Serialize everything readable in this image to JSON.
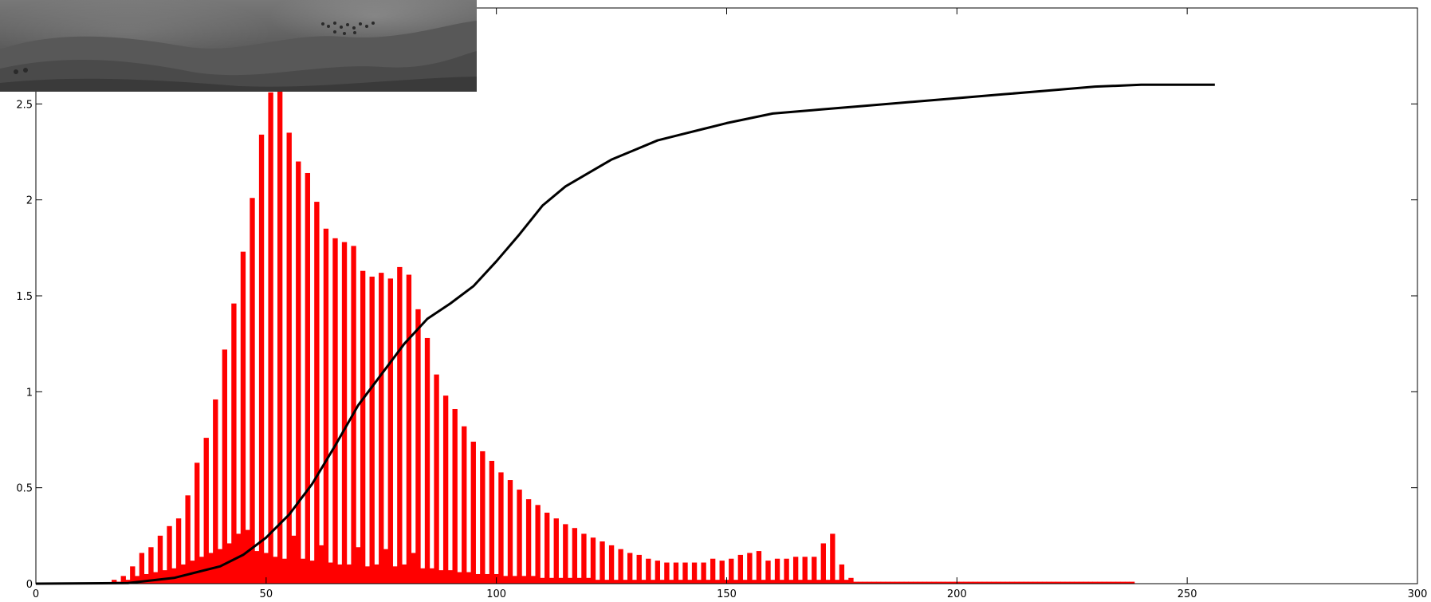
{
  "chart_data": {
    "type": "bar",
    "title": "",
    "xlabel": "",
    "ylabel": "",
    "xlim": [
      0,
      300
    ],
    "ylim": [
      0,
      3.0
    ],
    "xticks": [
      0,
      50,
      100,
      150,
      200,
      250,
      300
    ],
    "yticks": [
      0,
      0.5,
      1,
      1.5,
      2,
      2.5
    ],
    "xtick_labels": [
      "0",
      "50",
      "100",
      "150",
      "200",
      "250",
      "300"
    ],
    "ytick_labels": [
      "0",
      "0.5",
      "1",
      "1.5",
      "2",
      "2.5"
    ],
    "grid": false,
    "legend": "none",
    "series": [
      {
        "kind": "bar",
        "color": "#ff0000",
        "x": [
          17,
          19,
          21,
          23,
          25,
          27,
          29,
          31,
          33,
          35,
          37,
          39,
          41,
          43,
          45,
          47,
          49,
          51,
          53,
          55,
          57,
          59,
          61,
          63,
          65,
          67,
          69,
          71,
          73,
          75,
          77,
          79,
          81,
          83,
          85,
          87,
          89,
          91,
          93,
          95,
          97,
          99,
          101,
          103,
          105,
          107,
          109,
          111,
          113,
          115,
          117,
          119,
          121,
          123,
          125,
          127,
          129,
          131,
          133,
          135,
          137,
          139,
          141,
          143,
          145,
          147,
          149,
          151,
          153,
          155,
          157,
          159,
          161,
          163,
          165,
          167,
          169,
          171,
          173,
          175,
          177,
          179,
          181,
          183,
          185,
          187,
          189,
          191,
          193,
          195,
          197,
          199,
          201,
          203,
          205,
          207,
          209,
          211,
          213,
          215,
          217,
          219,
          221,
          223,
          225,
          227,
          229,
          231,
          233,
          235,
          237
        ],
        "values": [
          0.02,
          0.04,
          0.09,
          0.16,
          0.19,
          0.25,
          0.3,
          0.34,
          0.46,
          0.63,
          0.76,
          0.96,
          1.22,
          1.46,
          1.73,
          2.01,
          2.34,
          2.56,
          2.9,
          2.35,
          2.2,
          2.14,
          1.99,
          1.85,
          1.8,
          1.78,
          1.76,
          1.63,
          1.6,
          1.62,
          1.59,
          1.65,
          1.61,
          1.43,
          1.28,
          1.09,
          0.98,
          0.91,
          0.82,
          0.74,
          0.69,
          0.64,
          0.58,
          0.54,
          0.49,
          0.44,
          0.41,
          0.37,
          0.34,
          0.31,
          0.29,
          0.26,
          0.24,
          0.22,
          0.2,
          0.18,
          0.16,
          0.15,
          0.13,
          0.12,
          0.11,
          0.11,
          0.11,
          0.11,
          0.11,
          0.13,
          0.12,
          0.13,
          0.15,
          0.16,
          0.17,
          0.12,
          0.13,
          0.13,
          0.14,
          0.14,
          0.14,
          0.21,
          0.26,
          0.1,
          0.03,
          0.01,
          0.01,
          0.01,
          0.01,
          0.01,
          0.01,
          0.01,
          0.01,
          0.01,
          0.01,
          0.01,
          0.01,
          0.01,
          0.01,
          0.01,
          0.01,
          0.01,
          0.01,
          0.01,
          0.01,
          0.01,
          0.01,
          0.01,
          0.01,
          0.01,
          0.01,
          0.01,
          0.01,
          0.01,
          0.01
        ],
        "minor_values": [
          0.01,
          0.02,
          0.04,
          0.05,
          0.06,
          0.07,
          0.08,
          0.1,
          0.12,
          0.14,
          0.16,
          0.18,
          0.21,
          0.26,
          0.28,
          0.17,
          0.16,
          0.14,
          0.13,
          0.25,
          0.13,
          0.12,
          0.2,
          0.11,
          0.1,
          0.1,
          0.19,
          0.09,
          0.1,
          0.18,
          0.09,
          0.1,
          0.16,
          0.08,
          0.08,
          0.07,
          0.07,
          0.06,
          0.06,
          0.05,
          0.05,
          0.05,
          0.04,
          0.04,
          0.04,
          0.04,
          0.03,
          0.03,
          0.03,
          0.03,
          0.03,
          0.03,
          0.02,
          0.02,
          0.02,
          0.02,
          0.02,
          0.02,
          0.02,
          0.02,
          0.02,
          0.02,
          0.02,
          0.02,
          0.02,
          0.02,
          0.02,
          0.02,
          0.02,
          0.02,
          0.02,
          0.02,
          0.02,
          0.02,
          0.02,
          0.02,
          0.02,
          0.02,
          0.02,
          0.02,
          0.01,
          0.01,
          0.01,
          0.01,
          0.01,
          0.01,
          0.01,
          0.01,
          0.01,
          0.01,
          0.01,
          0.01,
          0.01,
          0.01,
          0.01,
          0.01,
          0.01,
          0.01,
          0.01,
          0.01,
          0.01,
          0.01,
          0.01,
          0.01,
          0.01,
          0.01,
          0.01,
          0.01,
          0.01,
          0.01,
          0.01
        ]
      },
      {
        "kind": "line",
        "color": "#000000",
        "x": [
          0,
          20,
          30,
          40,
          45,
          50,
          55,
          60,
          65,
          70,
          75,
          80,
          85,
          90,
          95,
          100,
          105,
          110,
          115,
          120,
          125,
          130,
          135,
          140,
          145,
          150,
          160,
          170,
          180,
          190,
          200,
          210,
          220,
          230,
          240,
          250,
          256
        ],
        "values": [
          0,
          0.003,
          0.03,
          0.09,
          0.15,
          0.24,
          0.36,
          0.52,
          0.72,
          0.93,
          1.09,
          1.25,
          1.38,
          1.46,
          1.55,
          1.68,
          1.82,
          1.97,
          2.07,
          2.14,
          2.21,
          2.26,
          2.31,
          2.34,
          2.37,
          2.4,
          2.45,
          2.47,
          2.49,
          2.51,
          2.53,
          2.55,
          2.57,
          2.59,
          2.6,
          2.6,
          2.6
        ]
      }
    ],
    "inset": {
      "description_icon": "grayscale-landscape-thumbnail"
    }
  }
}
